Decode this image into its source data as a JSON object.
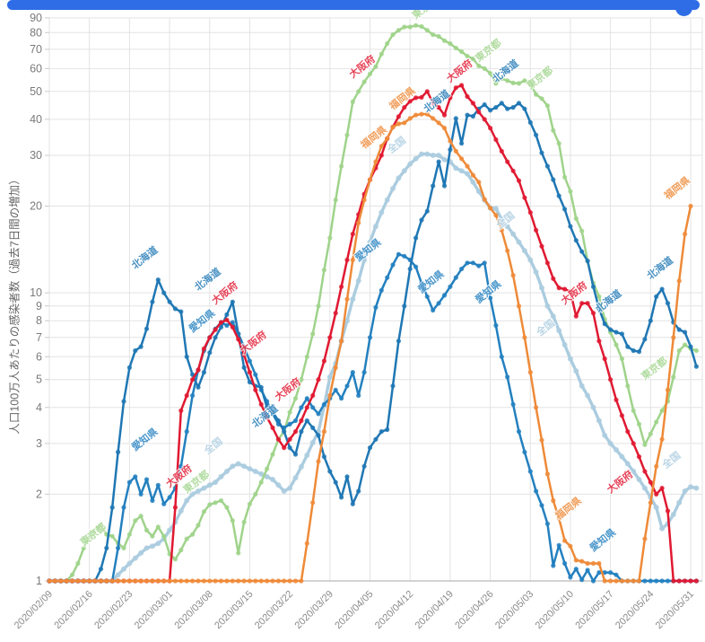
{
  "top_bar": {
    "color": "#2e6de5"
  },
  "chart_data": {
    "type": "line",
    "title": "",
    "ylabel": "人口100万人あたりの感染者数（過去7日間の増加）",
    "y_scale": "log",
    "ylim": [
      1,
      90
    ],
    "grid": true,
    "legend": "inline-labels-along-lines",
    "y_tick_labels": [
      "1",
      "2",
      "3",
      "4",
      "5",
      "6",
      "7",
      "8",
      "9",
      "10",
      "20",
      "30",
      "40",
      "50",
      "60",
      "70",
      "80",
      "90"
    ],
    "y_ticks": [
      1,
      2,
      3,
      4,
      5,
      6,
      7,
      8,
      9,
      10,
      20,
      30,
      40,
      50,
      60,
      70,
      80,
      90
    ],
    "x_tick_labels": [
      "2020/02/09",
      "2020/02/16",
      "2020/02/23",
      "2020/03/01",
      "2020/03/08",
      "2020/03/15",
      "2020/03/22",
      "2020/03/29",
      "2020/04/05",
      "2020/04/12",
      "2020/04/19",
      "2020/04/26",
      "2020/05/03",
      "2020/05/10",
      "2020/05/17",
      "2020/05/24",
      "2020/05/31"
    ],
    "start_date": "2020/02/09",
    "days_per_point": 1,
    "series": [
      {
        "id": "zenkoku",
        "name": "全国",
        "color": "#abccdf",
        "values": [
          1,
          1,
          1,
          1,
          1,
          1,
          1,
          1,
          1,
          1,
          1,
          1,
          1.05,
          1.1,
          1.15,
          1.2,
          1.25,
          1.3,
          1.32,
          1.35,
          1.4,
          1.5,
          1.6,
          1.75,
          1.9,
          2.0,
          2.05,
          2.1,
          2.15,
          2.2,
          2.3,
          2.4,
          2.5,
          2.55,
          2.5,
          2.45,
          2.4,
          2.35,
          2.3,
          2.25,
          2.15,
          2.05,
          2.1,
          2.28,
          2.49,
          2.73,
          3.02,
          3.3,
          4.05,
          5.1,
          5.68,
          6.8,
          8.0,
          9.5,
          11,
          13,
          15,
          17,
          19,
          21,
          23,
          25,
          26.5,
          28,
          29.2,
          30.3,
          30.3,
          30,
          30,
          29,
          28.5,
          27.1,
          26.5,
          25.9,
          24.2,
          22.5,
          21,
          19.7,
          19.6,
          18,
          17,
          16,
          15,
          14,
          13,
          11.8,
          10.4,
          9.0,
          8.3,
          7.4,
          6.6,
          5.9,
          5.35,
          4.75,
          4.4,
          4.0,
          3.6,
          3.2,
          3.0,
          2.85,
          2.7,
          2.55,
          2.4,
          2.25,
          2.1,
          1.95,
          1.8,
          1.52,
          1.58,
          1.7,
          1.87,
          2.05,
          2.12,
          2.1
        ]
      },
      {
        "id": "tokyo",
        "name": "東京都",
        "color": "#9fd38a",
        "values": [
          1,
          1,
          1,
          1,
          1.05,
          1.15,
          1.3,
          1.42,
          1.5,
          1.56,
          1.45,
          1.43,
          1.35,
          1.3,
          1.45,
          1.62,
          1.68,
          1.5,
          1.43,
          1.54,
          1.43,
          1.24,
          1.19,
          1.28,
          1.4,
          1.45,
          1.56,
          1.74,
          1.84,
          1.87,
          1.9,
          1.8,
          1.62,
          1.25,
          1.6,
          1.85,
          2.0,
          2.2,
          2.45,
          2.75,
          3.1,
          3.3,
          3.85,
          4.3,
          5.0,
          6.0,
          7.2,
          9.0,
          12,
          15.5,
          21,
          27.5,
          35.3,
          46,
          50,
          54,
          57.5,
          61,
          67.4,
          73.3,
          78.7,
          81.5,
          83.7,
          83.7,
          84.7,
          84,
          81.5,
          78.7,
          77.6,
          75,
          73.3,
          70.7,
          68.7,
          66.3,
          64.9,
          61.3,
          60,
          57.8,
          53.3,
          55.4,
          54.5,
          53.5,
          53.3,
          54.5,
          53.3,
          48.8,
          47.2,
          44.6,
          36.6,
          33,
          25.2,
          22.5,
          18.1,
          16.4,
          12.9,
          10.8,
          9.7,
          8.1,
          7.3,
          6.6,
          5.9,
          4.75,
          3.9,
          3.5,
          2.97,
          3.24,
          3.56,
          3.9,
          4.2,
          5.1,
          6.3,
          6.6,
          6.4,
          6.3
        ]
      },
      {
        "id": "aichi",
        "name": "愛知県",
        "color": "#2380bf",
        "values": [
          1,
          1,
          1,
          1,
          1,
          1,
          1,
          1,
          1,
          1,
          1,
          1,
          1.3,
          1.8,
          2.2,
          2.3,
          2.0,
          2.25,
          1.9,
          2.15,
          1.85,
          1.95,
          2.1,
          2.5,
          3.3,
          4.4,
          5.4,
          6.3,
          7.0,
          7.5,
          7.9,
          7.7,
          7.9,
          7.2,
          6.5,
          5.8,
          5.2,
          4.6,
          4.2,
          3.8,
          3.5,
          3.4,
          3.5,
          3.6,
          4.0,
          4.3,
          4.0,
          3.8,
          4.1,
          4.3,
          4.6,
          4.3,
          4.75,
          5.3,
          4.4,
          5.3,
          7.0,
          8.9,
          10.2,
          11.3,
          12.5,
          13.6,
          13.4,
          13.0,
          12.3,
          10.8,
          9.7,
          8.7,
          9.2,
          9.8,
          10.5,
          11.3,
          12.1,
          12.7,
          12.7,
          12.4,
          12.7,
          9.6,
          7.7,
          6.0,
          5.1,
          4.1,
          3.3,
          2.8,
          2.4,
          2.05,
          1.83,
          1.58,
          1.13,
          1.33,
          1.15,
          1.03,
          1.1,
          1.01,
          1.09,
          1.0,
          1.07,
          1.07,
          1.07,
          1.05,
          1,
          1,
          1,
          1,
          1,
          1,
          1,
          1,
          1,
          1,
          1,
          1,
          1,
          1
        ]
      },
      {
        "id": "hokkaido",
        "name": "北海道",
        "color": "#1f77b4",
        "values": [
          1,
          1,
          1,
          1,
          1,
          1,
          1,
          1,
          1,
          1.1,
          1.3,
          1.8,
          2.8,
          4.2,
          5.5,
          6.3,
          6.5,
          7.5,
          9.3,
          11.1,
          10.0,
          9.3,
          8.8,
          8.6,
          6.0,
          5.2,
          4.7,
          5.3,
          6.2,
          7.0,
          7.6,
          8.4,
          9.3,
          7.2,
          5.5,
          4.9,
          4.75,
          4.7,
          4.0,
          3.85,
          3.6,
          3.3,
          2.9,
          2.75,
          3.3,
          3.6,
          3.4,
          3.2,
          2.7,
          2.4,
          2.2,
          1.95,
          2.3,
          1.85,
          2.05,
          2.5,
          2.9,
          3.1,
          3.3,
          3.35,
          4.75,
          6.8,
          9.0,
          12.1,
          15.5,
          17.9,
          19.2,
          23.5,
          28.5,
          23.5,
          31.4,
          40.3,
          33,
          41.4,
          41,
          43.5,
          45,
          43,
          44,
          45.5,
          43.5,
          44,
          45.5,
          43.5,
          39,
          35.3,
          30.6,
          27.5,
          24.7,
          21.7,
          19.5,
          17,
          15.2,
          13.9,
          12.9,
          10.5,
          8.8,
          7.8,
          7.45,
          7.3,
          7.2,
          6.5,
          6.3,
          6.25,
          6.9,
          8.0,
          9.7,
          10.3,
          9.2,
          7.9,
          7.45,
          7.3,
          6.5,
          5.55
        ]
      },
      {
        "id": "osaka",
        "name": "大阪府",
        "color": "#e01931",
        "values": [
          1,
          1,
          1,
          1,
          1,
          1,
          1,
          1,
          1,
          1,
          1,
          1,
          1,
          1,
          1,
          1,
          1,
          1,
          1,
          1,
          1,
          1,
          1.8,
          3.9,
          4.4,
          5.0,
          5.4,
          6.4,
          7.0,
          7.45,
          7.9,
          8.05,
          7.6,
          6.9,
          6.1,
          5.3,
          4.6,
          4.1,
          3.7,
          3.4,
          3.1,
          2.9,
          3.1,
          3.3,
          3.6,
          4.0,
          4.4,
          5.0,
          5.8,
          7.0,
          8.5,
          10.5,
          13,
          16,
          18.7,
          22,
          24.7,
          27.1,
          30,
          34.3,
          37.6,
          40.9,
          44,
          46.2,
          47.5,
          47.7,
          50,
          45.6,
          44,
          41.4,
          47.5,
          51.5,
          52.5,
          48,
          45.5,
          42.4,
          40,
          37.3,
          34,
          31,
          28.5,
          26.5,
          24.5,
          21.4,
          19,
          16.5,
          14.5,
          12.7,
          11.2,
          10.4,
          10.3,
          10.1,
          8.3,
          9.2,
          9.2,
          8.5,
          6.8,
          5.9,
          5.0,
          4.25,
          3.75,
          3.3,
          3.0,
          2.7,
          2.4,
          2.2,
          2.0,
          2.1,
          1.75,
          1,
          1,
          1,
          1,
          1
        ]
      },
      {
        "id": "fukuoka",
        "name": "福岡県",
        "color": "#ee8a38",
        "values": [
          1,
          1,
          1,
          1,
          1,
          1,
          1,
          1,
          1,
          1,
          1,
          1,
          1,
          1,
          1,
          1,
          1,
          1,
          1,
          1,
          1,
          1,
          1,
          1,
          1,
          1,
          1,
          1,
          1,
          1,
          1,
          1,
          1,
          1,
          1,
          1,
          1,
          1,
          1,
          1,
          1,
          1,
          1,
          1,
          1,
          1.35,
          1.87,
          2.6,
          3.3,
          4.4,
          5.5,
          6.8,
          9.5,
          13,
          17.5,
          21,
          24.7,
          28.5,
          32.3,
          34.3,
          37.6,
          38.6,
          38.9,
          40.3,
          41.4,
          41.7,
          41.7,
          40.3,
          38.9,
          37.3,
          33.6,
          31,
          29.2,
          27.5,
          25.6,
          24.2,
          21.1,
          19.7,
          18.6,
          16.5,
          14,
          11.5,
          9.0,
          7.0,
          5.3,
          4.0,
          3.08,
          2.35,
          1.9,
          1.65,
          1.38,
          1.32,
          1.18,
          1.17,
          1.15,
          1.15,
          1.15,
          1.0,
          1,
          1,
          1,
          1,
          1,
          1,
          1.4,
          1.87,
          2.5,
          3.1,
          4.6,
          7.0,
          11,
          16,
          20,
          null
        ]
      }
    ],
    "inline_labels": [
      {
        "series": "hokkaido",
        "day": 17,
        "value": 12.6
      },
      {
        "series": "hokkaido",
        "day": 28,
        "value": 10.6
      },
      {
        "series": "hokkaido",
        "day": 38,
        "value": 3.55
      },
      {
        "series": "hokkaido",
        "day": 68,
        "value": 44
      },
      {
        "series": "hokkaido",
        "day": 80,
        "value": 56
      },
      {
        "series": "hokkaido",
        "day": 98,
        "value": 8.9
      },
      {
        "series": "hokkaido",
        "day": 107,
        "value": 11.6
      },
      {
        "series": "aichi",
        "day": 17,
        "value": 2.95
      },
      {
        "series": "aichi",
        "day": 27,
        "value": 7.6
      },
      {
        "series": "aichi",
        "day": 56,
        "value": 13.4
      },
      {
        "series": "aichi",
        "day": 67,
        "value": 10.4
      },
      {
        "series": "aichi",
        "day": 77,
        "value": 9.6
      },
      {
        "series": "aichi",
        "day": 97,
        "value": 1.32
      },
      {
        "series": "tokyo",
        "day": 8,
        "value": 1.38
      },
      {
        "series": "tokyo",
        "day": 26,
        "value": 2.1
      },
      {
        "series": "tokyo",
        "day": 66,
        "value": 93
      },
      {
        "series": "tokyo",
        "day": 77,
        "value": 66
      },
      {
        "series": "tokyo",
        "day": 86,
        "value": 53
      },
      {
        "series": "tokyo",
        "day": 106,
        "value": 5.2
      },
      {
        "series": "osaka",
        "day": 23,
        "value": 2.2
      },
      {
        "series": "osaka",
        "day": 31,
        "value": 9.5
      },
      {
        "series": "osaka",
        "day": 36,
        "value": 6.4
      },
      {
        "series": "osaka",
        "day": 42,
        "value": 4.4
      },
      {
        "series": "osaka",
        "day": 55,
        "value": 58
      },
      {
        "series": "osaka",
        "day": 72,
        "value": 56
      },
      {
        "series": "osaka",
        "day": 92,
        "value": 9.5
      },
      {
        "series": "osaka",
        "day": 100,
        "value": 2.1
      },
      {
        "series": "fukuoka",
        "day": 57,
        "value": 33
      },
      {
        "series": "fukuoka",
        "day": 62,
        "value": 45
      },
      {
        "series": "fukuoka",
        "day": 91,
        "value": 1.7
      },
      {
        "series": "fukuoka",
        "day": 110,
        "value": 22
      },
      {
        "series": "zenkoku",
        "day": 29,
        "value": 2.8
      },
      {
        "series": "zenkoku",
        "day": 61,
        "value": 31
      },
      {
        "series": "zenkoku",
        "day": 80,
        "value": 17
      },
      {
        "series": "zenkoku",
        "day": 87,
        "value": 7.2
      },
      {
        "series": "zenkoku",
        "day": 109,
        "value": 2.5
      }
    ]
  }
}
